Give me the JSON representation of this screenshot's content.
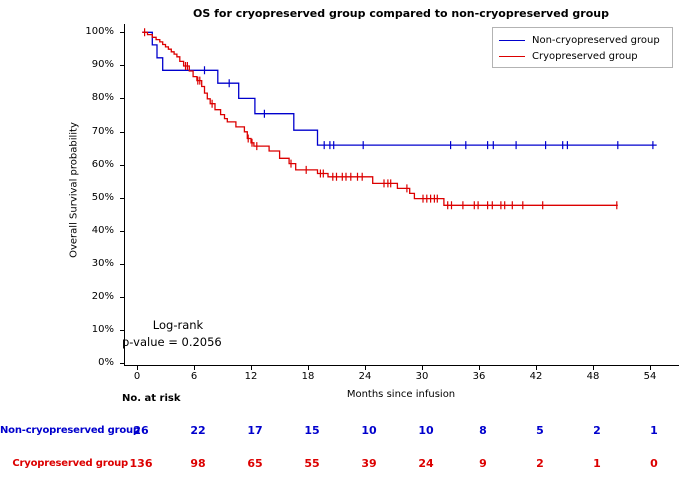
{
  "chart_data": {
    "type": "line",
    "subtype": "kaplan-meier-step",
    "title": "OS for cryopreserved group compared to non-cryopreserved group",
    "xlabel": "Months since infusion",
    "ylabel": "Overall Survival probability",
    "xlim": [
      0,
      57
    ],
    "ylim": [
      0,
      100
    ],
    "grid": false,
    "legend_position": "upper right",
    "x_ticks": [
      0,
      6,
      12,
      18,
      24,
      30,
      36,
      42,
      48,
      54
    ],
    "y_ticks": [
      {
        "value": 0,
        "label": "0%"
      },
      {
        "value": 10,
        "label": "10%"
      },
      {
        "value": 20,
        "label": "20%"
      },
      {
        "value": 30,
        "label": "30%"
      },
      {
        "value": 40,
        "label": "40%"
      },
      {
        "value": 50,
        "label": "50%"
      },
      {
        "value": 60,
        "label": "60%"
      },
      {
        "value": 70,
        "label": "70%"
      },
      {
        "value": 80,
        "label": "80%"
      },
      {
        "value": 90,
        "label": "90%"
      },
      {
        "value": 100,
        "label": "100%"
      }
    ],
    "annotation": {
      "line1": "Log-rank",
      "line2": "p-value = 0.2056"
    },
    "series": [
      {
        "name": "Non-cryopreserved group",
        "color": "#0000cd",
        "end_x": 54.6,
        "steps": [
          [
            0.45,
            100
          ],
          [
            1.5,
            96.2
          ],
          [
            2.0,
            92.3
          ],
          [
            2.6,
            88.5
          ],
          [
            8.4,
            84.6
          ],
          [
            10.6,
            80.0
          ],
          [
            12.3,
            75.4
          ],
          [
            16.4,
            70.4
          ],
          [
            18.9,
            65.9
          ]
        ],
        "censor_marks": [
          [
            7.0,
            88.5
          ],
          [
            9.6,
            84.6
          ],
          [
            13.3,
            75.4
          ],
          [
            19.6,
            65.9
          ],
          [
            20.2,
            65.9
          ],
          [
            20.6,
            65.9
          ],
          [
            23.7,
            65.9
          ],
          [
            32.9,
            65.9
          ],
          [
            34.5,
            65.9
          ],
          [
            36.8,
            65.9
          ],
          [
            37.4,
            65.9
          ],
          [
            39.8,
            65.9
          ],
          [
            42.9,
            65.9
          ],
          [
            44.7,
            65.9
          ],
          [
            45.2,
            65.9
          ],
          [
            50.5,
            65.9
          ],
          [
            54.2,
            65.9
          ]
        ]
      },
      {
        "name": "Cryopreserved group",
        "color": "#dc0000",
        "end_x": 50.5,
        "steps": [
          [
            0.45,
            100
          ],
          [
            1.0,
            99.3
          ],
          [
            1.5,
            98.5
          ],
          [
            1.9,
            97.8
          ],
          [
            2.3,
            97.1
          ],
          [
            2.6,
            96.3
          ],
          [
            2.9,
            95.6
          ],
          [
            3.2,
            94.9
          ],
          [
            3.5,
            94.1
          ],
          [
            3.8,
            93.4
          ],
          [
            4.1,
            92.6
          ],
          [
            4.4,
            91.2
          ],
          [
            4.8,
            89.8
          ],
          [
            5.4,
            88.3
          ],
          [
            5.8,
            86.6
          ],
          [
            6.2,
            85.4
          ],
          [
            6.7,
            83.6
          ],
          [
            7.0,
            81.6
          ],
          [
            7.3,
            79.9
          ],
          [
            7.6,
            78.4
          ],
          [
            8.1,
            76.6
          ],
          [
            8.7,
            75.1
          ],
          [
            9.1,
            73.9
          ],
          [
            9.4,
            72.9
          ],
          [
            10.3,
            71.4
          ],
          [
            11.2,
            69.9
          ],
          [
            11.5,
            67.9
          ],
          [
            11.9,
            66.6
          ],
          [
            12.2,
            65.6
          ],
          [
            13.8,
            64.1
          ],
          [
            14.9,
            61.9
          ],
          [
            15.9,
            60.3
          ],
          [
            16.6,
            58.4
          ],
          [
            18.9,
            57.3
          ],
          [
            20.0,
            56.3
          ],
          [
            24.7,
            54.3
          ],
          [
            27.3,
            52.8
          ],
          [
            28.6,
            51.3
          ],
          [
            29.1,
            49.7
          ],
          [
            32.2,
            47.7
          ]
        ],
        "censor_marks": [
          [
            0.7,
            100
          ],
          [
            5.0,
            89.8
          ],
          [
            5.2,
            89.8
          ],
          [
            6.3,
            85.4
          ],
          [
            6.5,
            85.4
          ],
          [
            7.8,
            78.4
          ],
          [
            11.6,
            67.9
          ],
          [
            12.0,
            66.6
          ],
          [
            12.5,
            65.6
          ],
          [
            16.1,
            60.3
          ],
          [
            17.7,
            58.4
          ],
          [
            19.2,
            57.3
          ],
          [
            19.5,
            57.3
          ],
          [
            20.5,
            56.3
          ],
          [
            20.9,
            56.3
          ],
          [
            21.5,
            56.3
          ],
          [
            21.9,
            56.3
          ],
          [
            22.4,
            56.3
          ],
          [
            23.1,
            56.3
          ],
          [
            23.6,
            56.3
          ],
          [
            25.9,
            54.3
          ],
          [
            26.3,
            54.3
          ],
          [
            26.6,
            54.3
          ],
          [
            28.3,
            52.8
          ],
          [
            30.0,
            49.7
          ],
          [
            30.4,
            49.7
          ],
          [
            30.8,
            49.7
          ],
          [
            31.2,
            49.7
          ],
          [
            31.5,
            49.7
          ],
          [
            32.6,
            47.7
          ],
          [
            33.0,
            47.7
          ],
          [
            34.2,
            47.7
          ],
          [
            35.4,
            47.7
          ],
          [
            35.8,
            47.7
          ],
          [
            36.8,
            47.7
          ],
          [
            37.3,
            47.7
          ],
          [
            38.2,
            47.7
          ],
          [
            38.6,
            47.7
          ],
          [
            39.4,
            47.7
          ],
          [
            40.5,
            47.7
          ],
          [
            42.6,
            47.7
          ],
          [
            50.4,
            47.7
          ]
        ]
      }
    ],
    "risk_table": {
      "header": "No. at risk",
      "time_points": [
        0,
        6,
        12,
        18,
        24,
        30,
        36,
        42,
        48,
        54
      ],
      "rows": [
        {
          "label": "Non-cryopreserved group",
          "color": "#0000cd",
          "values": [
            26,
            22,
            17,
            15,
            10,
            10,
            8,
            5,
            2,
            1
          ]
        },
        {
          "label": "Cryopreserved group",
          "color": "#dc0000",
          "values": [
            136,
            98,
            65,
            55,
            39,
            24,
            9,
            2,
            1,
            0
          ]
        }
      ]
    }
  }
}
